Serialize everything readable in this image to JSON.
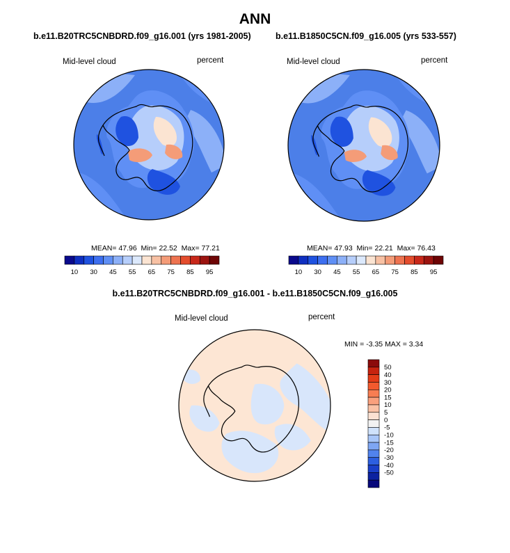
{
  "title": "ANN",
  "panels": [
    {
      "case": "b.e11.B20TRC5CNBDRD.f09_g16.001 (yrs 1981-2005)",
      "variable": "Mid-level cloud",
      "units": "percent",
      "stats": {
        "mean": "47.96",
        "min": "22.52",
        "max": "77.21"
      }
    },
    {
      "case": "b.e11.B1850C5CN.f09_g16.005 (yrs 533-557)",
      "variable": "Mid-level cloud",
      "units": "percent",
      "stats": {
        "mean": "47.93",
        "min": "22.21",
        "max": "76.43"
      }
    }
  ],
  "stat_labels": {
    "mean": "MEAN=",
    "min": "Min=",
    "max": "Max="
  },
  "abs_colorbar": {
    "labels": [
      "10",
      "30",
      "45",
      "55",
      "65",
      "75",
      "85",
      "95"
    ],
    "colors": [
      "#0a0a8c",
      "#0f2fc0",
      "#1f52e0",
      "#3d6ff0",
      "#5f8ff5",
      "#8cb0f8",
      "#b6cefb",
      "#dce9fc",
      "#fbe4d2",
      "#f8c1a4",
      "#f49c78",
      "#ee7350",
      "#e44d2d",
      "#c8281a",
      "#9c1410",
      "#6e0505"
    ]
  },
  "difference": {
    "case": "b.e11.B20TRC5CNBDRD.f09_g16.001 - b.e11.B1850C5CN.f09_g16.005",
    "variable": "Mid-level cloud",
    "units": "percent",
    "stats_text": "MIN =  -3.35 MAX =   3.34",
    "colorbar": {
      "labels": [
        "50",
        "40",
        "30",
        "20",
        "15",
        "10",
        "5",
        "0",
        "-5",
        "-10",
        "-15",
        "-20",
        "-30",
        "-40",
        "-50"
      ],
      "colors": [
        "#8b0b0b",
        "#c7230f",
        "#e43c18",
        "#f35a2e",
        "#f77d52",
        "#f9a07d",
        "#fac2a6",
        "#fbe1d2",
        "#f2f2f2",
        "#cfe2fb",
        "#a8c6f8",
        "#7ea6f3",
        "#5183ee",
        "#2d5fe0",
        "#1a3fc8",
        "#0c22a0",
        "#07087a"
      ]
    }
  },
  "map_colors": {
    "ocean": "#4c7fe8",
    "ocean_light": "#8cb0f8",
    "land_dark": "#1f52e0",
    "land_mid": "#5f8ff5",
    "land_light": "#b6cefb",
    "warm": "#fbe4d2",
    "warmer": "#f49c78",
    "diff_pos": "#fde6d4",
    "diff_neg": "#d8e6fb"
  }
}
